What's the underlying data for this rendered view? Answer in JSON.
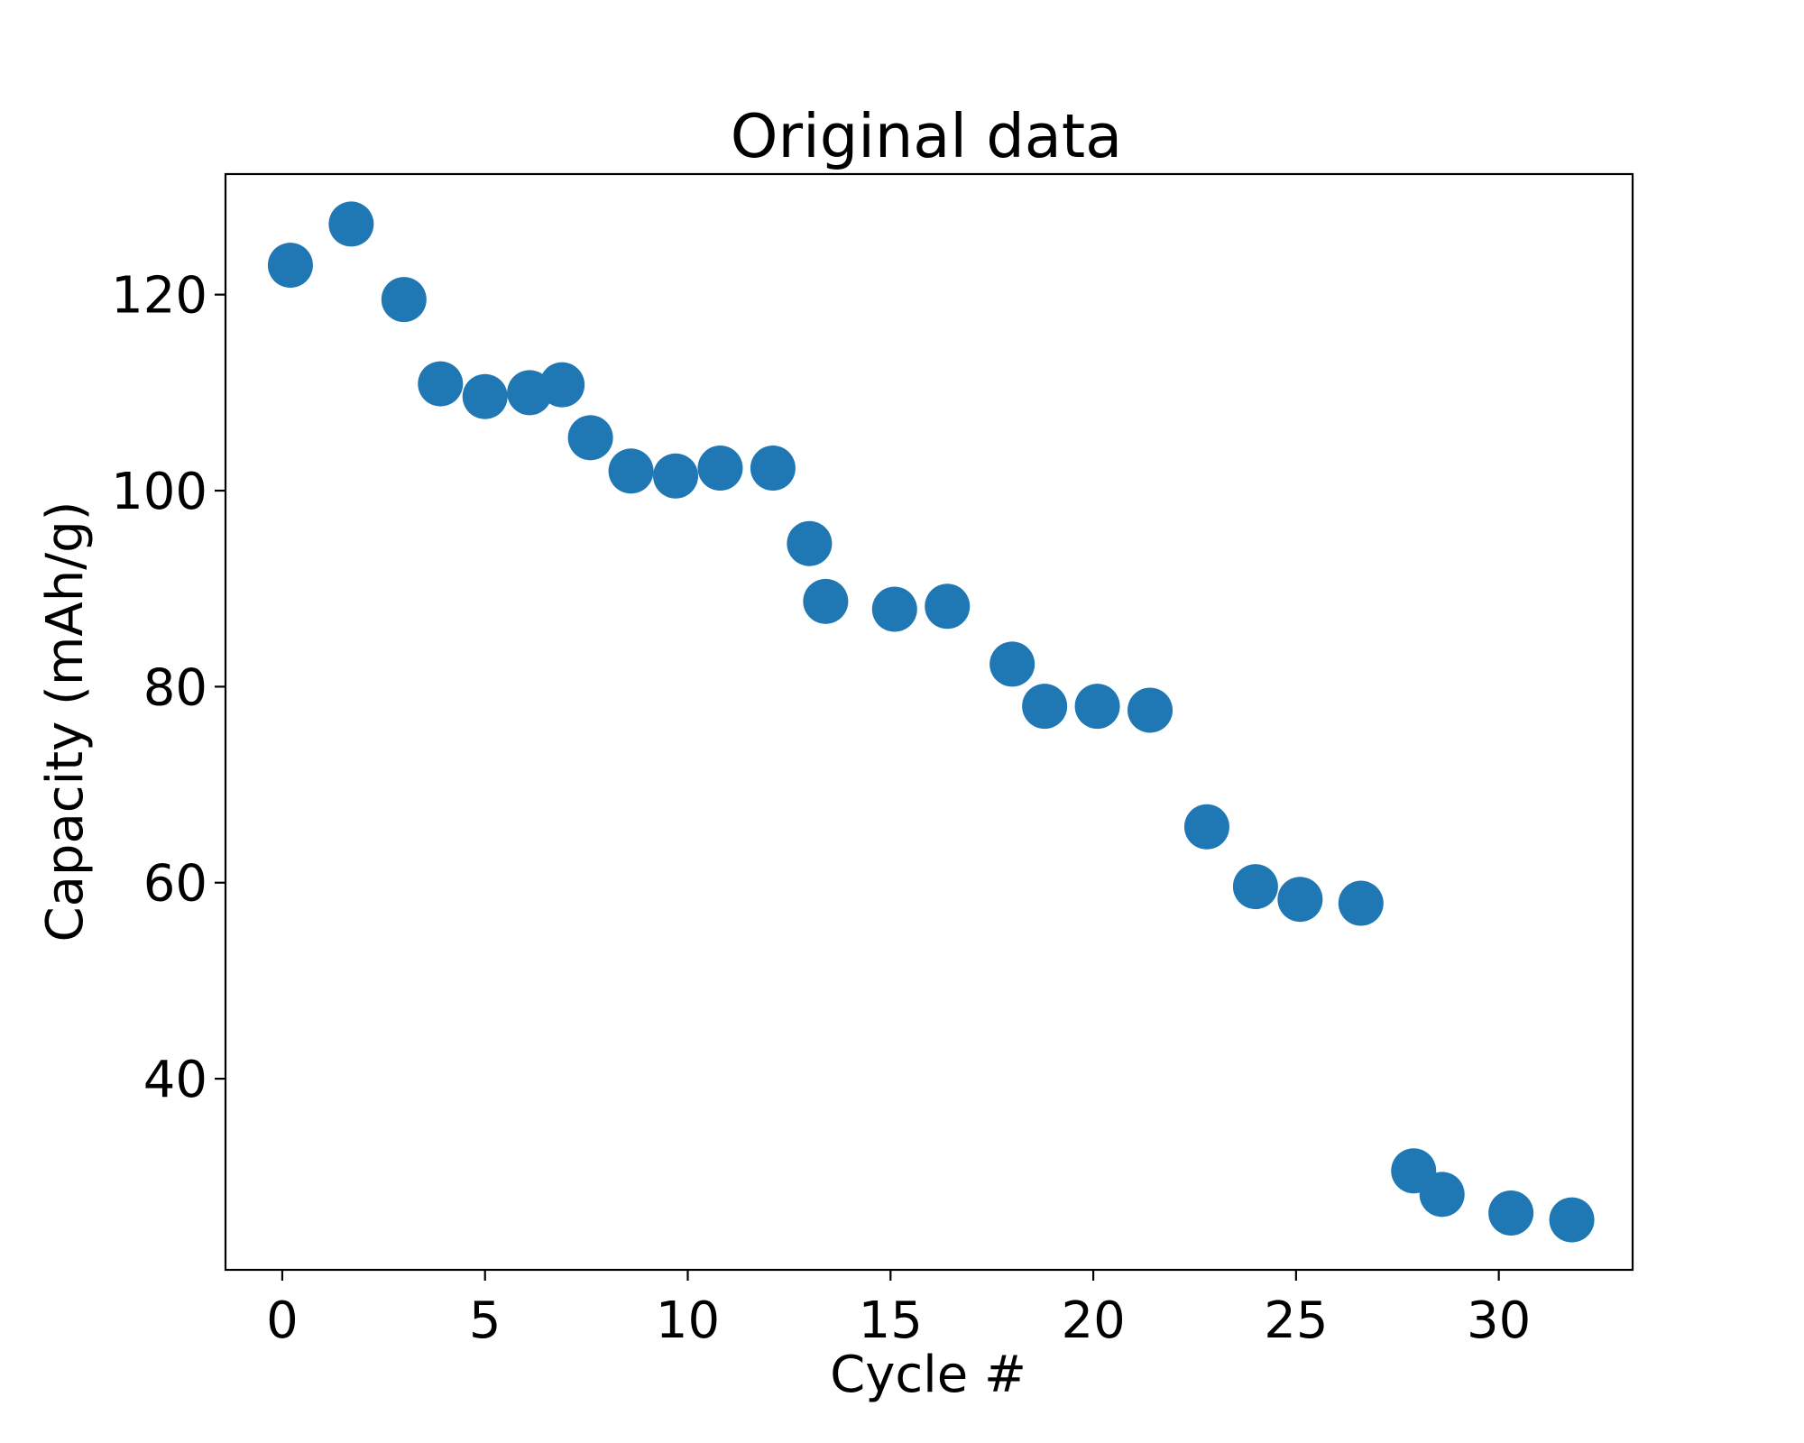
{
  "chart_data": {
    "type": "scatter",
    "title": "Original data",
    "xlabel": "Cycle #",
    "ylabel": "Capacity (mAh/g)",
    "xlim": [
      -1.4,
      33.3
    ],
    "ylim": [
      20.5,
      132.3
    ],
    "xticks": [
      0,
      5,
      10,
      15,
      20,
      25,
      30
    ],
    "xtick_labels": [
      "0",
      "5",
      "10",
      "15",
      "20",
      "25",
      "30"
    ],
    "yticks": [
      40,
      60,
      80,
      100,
      120
    ],
    "ytick_labels": [
      "40",
      "60",
      "80",
      "100",
      "120"
    ],
    "grid": false,
    "marker_color": "#1f77b4",
    "series": [
      {
        "x": [
          0.2,
          1.7,
          3.0,
          3.9,
          5.0,
          6.1,
          6.9,
          7.6,
          8.6,
          9.7,
          10.8,
          12.1,
          13.0,
          13.4,
          15.1,
          16.4,
          18.0,
          18.8,
          20.1,
          21.4,
          22.8,
          24.0,
          25.1,
          26.6,
          27.9,
          28.6,
          30.3,
          31.8
        ],
        "y": [
          123.0,
          127.2,
          119.5,
          110.9,
          109.6,
          110.0,
          110.8,
          105.4,
          102.0,
          101.5,
          102.3,
          102.3,
          94.6,
          88.7,
          87.9,
          88.2,
          82.3,
          78.0,
          78.0,
          77.6,
          65.7,
          59.6,
          58.3,
          57.9,
          30.6,
          28.2,
          26.3,
          25.6
        ]
      }
    ]
  }
}
